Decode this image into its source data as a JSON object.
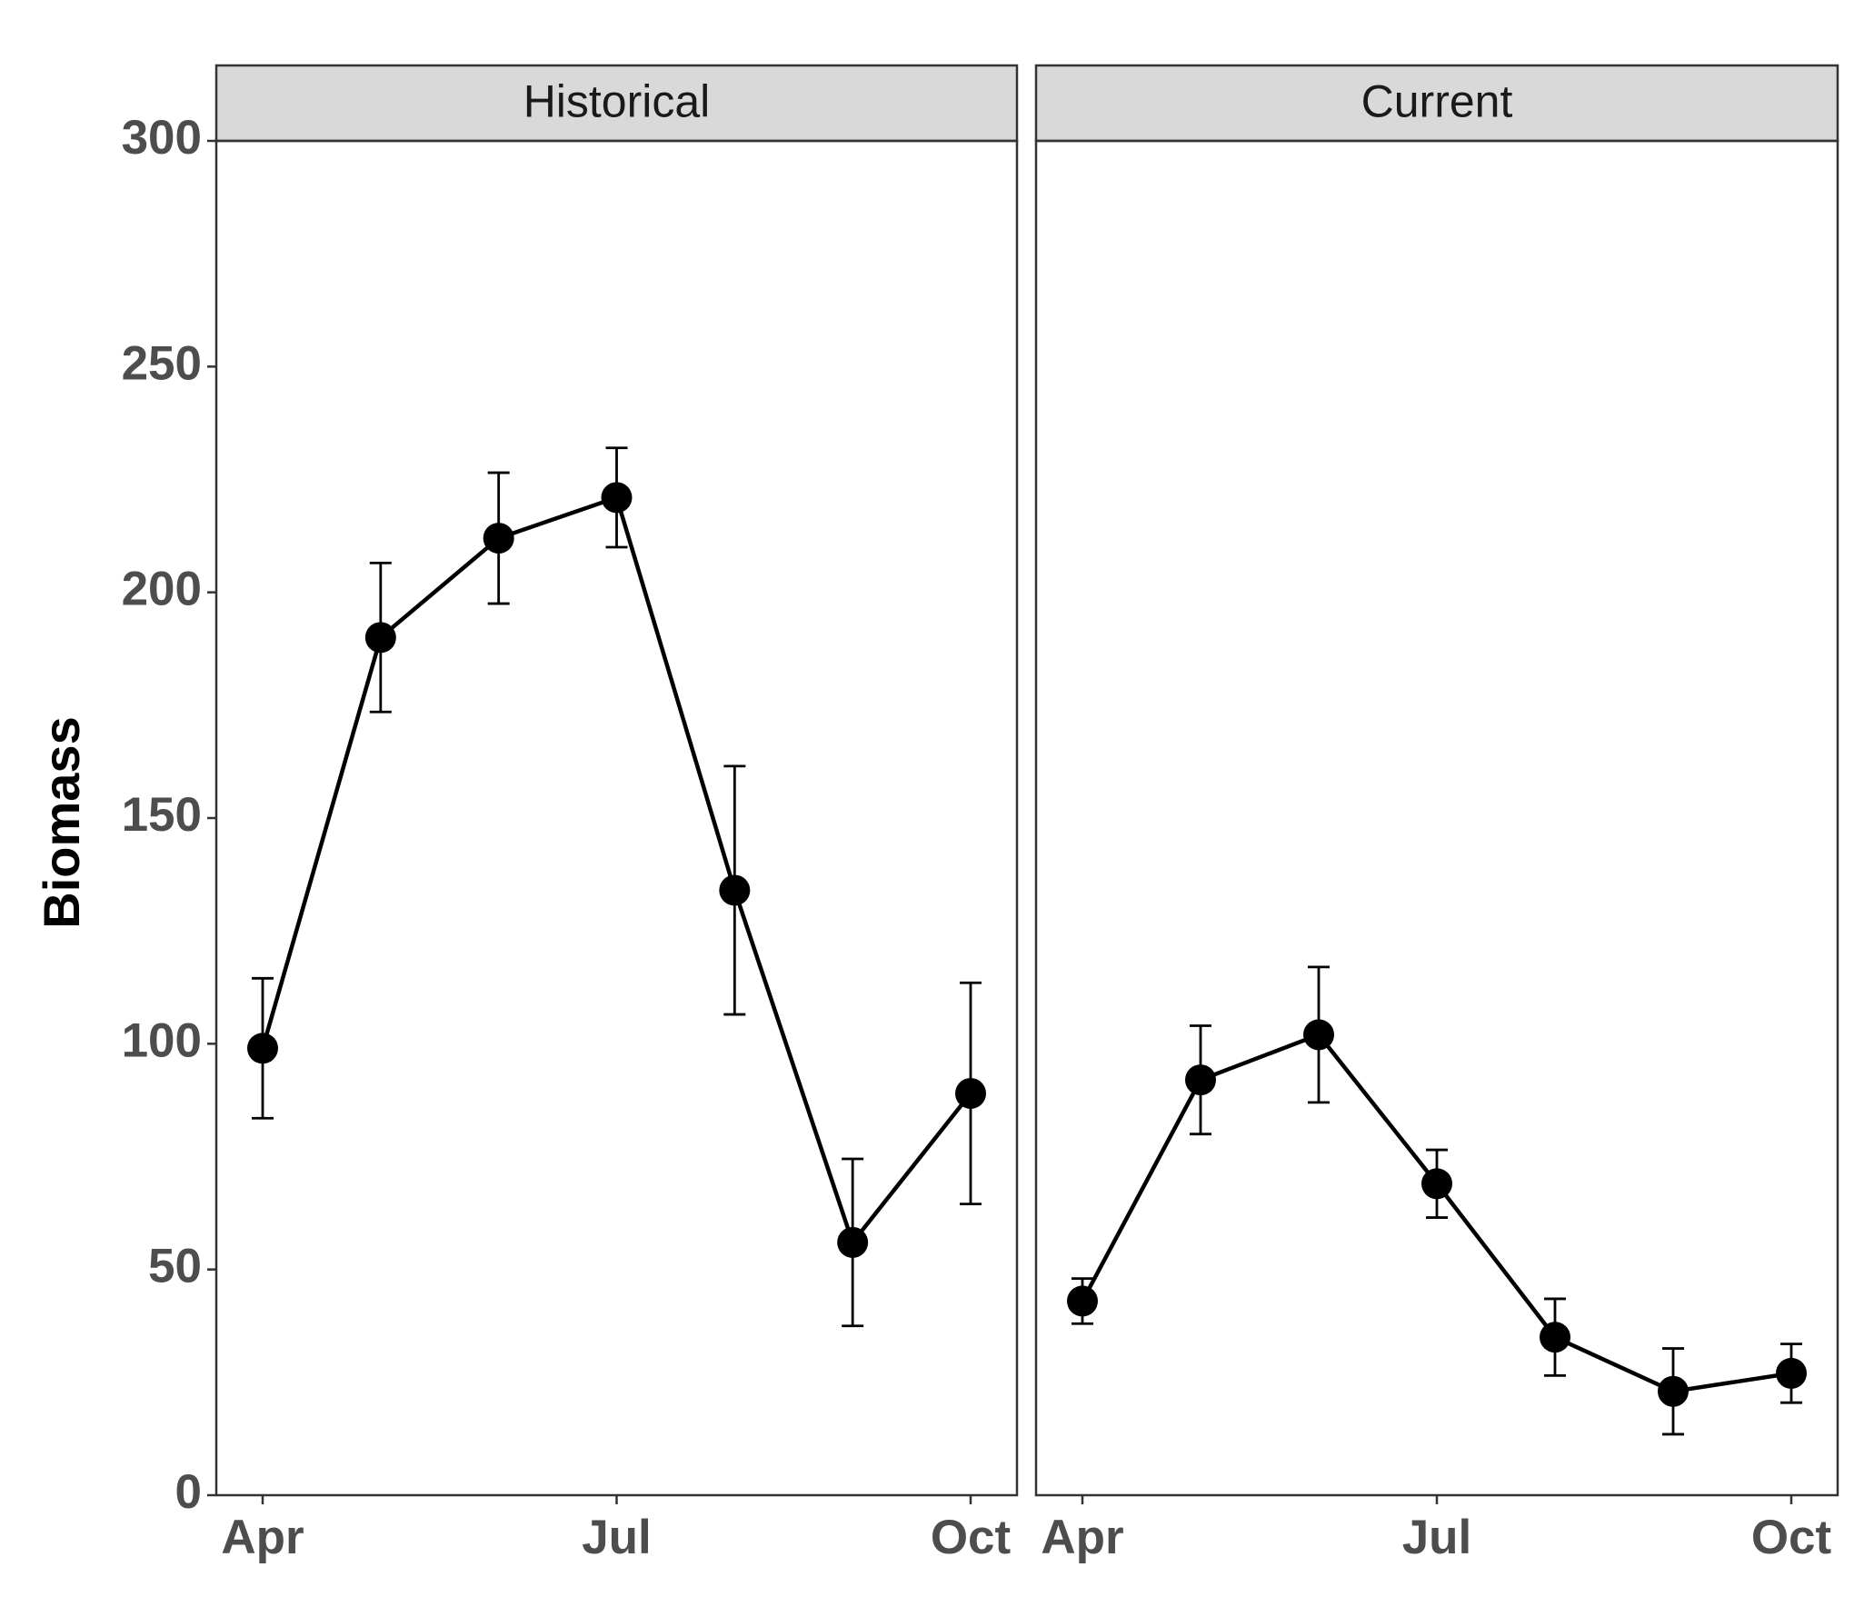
{
  "chart_data": [
    {
      "type": "line",
      "title": "Historical",
      "ylabel": "Biomass",
      "categories": [
        "Apr",
        null,
        null,
        "Jul",
        null,
        null,
        "Oct"
      ],
      "values": [
        99,
        190,
        212,
        221,
        134,
        56,
        89
      ],
      "errors": [
        15.5,
        16.5,
        14.5,
        11,
        27.5,
        18.5,
        24.5
      ],
      "color": "#000000",
      "ylim": [
        0,
        300
      ],
      "yticks": [
        0,
        50,
        100,
        150,
        200,
        250,
        300
      ]
    },
    {
      "type": "line",
      "title": "Current",
      "categories": [
        "Apr",
        null,
        null,
        "Jul",
        null,
        null,
        "Oct"
      ],
      "values": [
        43,
        92,
        102,
        69,
        35,
        23,
        27
      ],
      "errors": [
        5,
        12,
        15,
        7.5,
        8.5,
        9.5,
        6.5
      ],
      "color": "#000000",
      "ylim": [
        0,
        300
      ]
    }
  ]
}
